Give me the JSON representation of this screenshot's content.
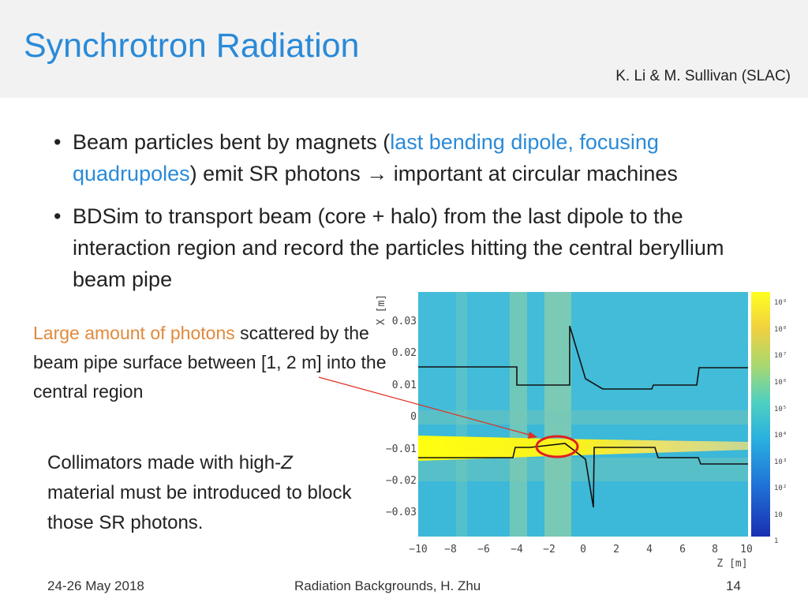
{
  "header": {
    "title": "Synchrotron Radiation",
    "author": "K. Li & M. Sullivan (SLAC)"
  },
  "bullets": [
    {
      "parts": [
        {
          "text": "Beam particles bent by magnets (",
          "style": "normal"
        },
        {
          "text": "last bending dipole, focusing quadrupoles",
          "style": "blue"
        },
        {
          "text": ") emit SR photons → important at circular machines",
          "style": "normal"
        }
      ]
    },
    {
      "parts": [
        {
          "text": "BDSim to transport beam (core + halo) from the last dipole to the interaction region and record the particles hitting the central beryllium beam pipe",
          "style": "normal"
        }
      ]
    }
  ],
  "note1": {
    "highlight": "Large amount of  photons",
    "rest": " scattered by the beam pipe surface between [1, 2 m] into the central region"
  },
  "note2": {
    "before": "Collimators made with high-",
    "italic": "Z",
    "after": " material must be introduced to block those SR photons."
  },
  "plot": {
    "ylabel": "X [m]",
    "xlabel": "Z [m]",
    "yticks": [
      "0.03",
      "0.02",
      "0.01",
      "0",
      "−0.01",
      "−0.02",
      "−0.03"
    ],
    "xticks": [
      "−10",
      "−8",
      "−6",
      "−4",
      "−2",
      "0",
      "2",
      "4",
      "6",
      "8",
      "10"
    ],
    "colorbar_labels": [
      "10⁹",
      "10⁸",
      "10⁷",
      "10⁶",
      "10⁵",
      "10⁴",
      "10³",
      "10²",
      "10",
      "1"
    ]
  },
  "footer": {
    "date": "24-26 May 2018",
    "center": "Radiation Backgrounds, H. Zhu",
    "page": "14"
  },
  "colors": {
    "title": "#2a8ad8",
    "orange": "#e08a3c",
    "arrow": "#e03020",
    "circle": "#e02020"
  }
}
